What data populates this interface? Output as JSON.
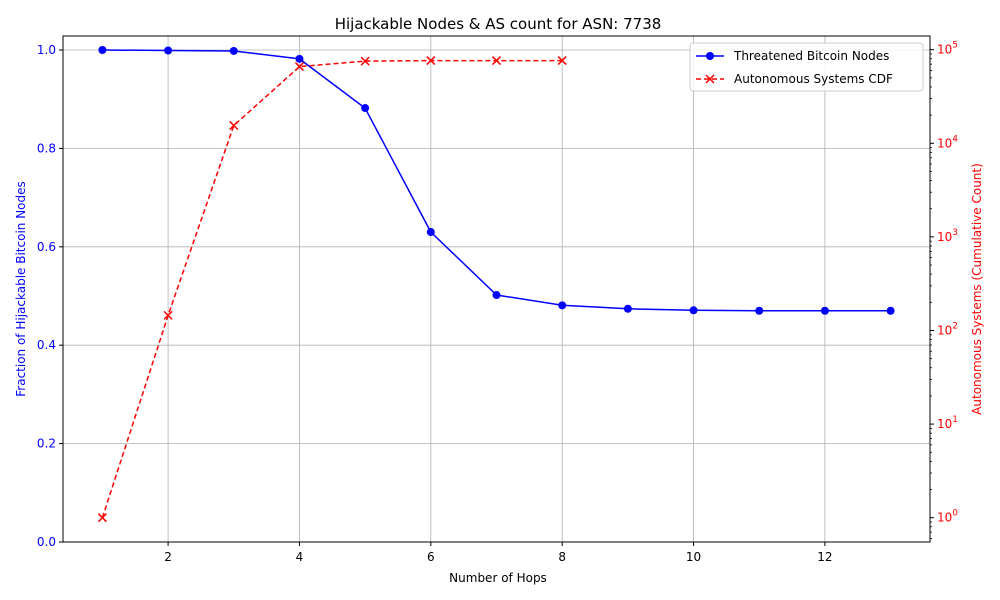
{
  "chart_data": {
    "type": "line",
    "title": "Hijackable Nodes & AS count for ASN: 7738",
    "xlabel": "Number of Hops",
    "ylabel_left": "Fraction of Hijackable Bitcoin Nodes",
    "ylabel_right": "Autonomous Systems (Cumulative Count)",
    "xlim": [
      0.4,
      13.6
    ],
    "ylim_left": [
      0.0,
      1.0
    ],
    "ylim_right": [
      0.55,
      140000
    ],
    "right_scale": "log",
    "grid": true,
    "legend_position": "top-right",
    "x_ticks": [
      {
        "value": 2,
        "label": "2"
      },
      {
        "value": 4,
        "label": "4"
      },
      {
        "value": 6,
        "label": "6"
      },
      {
        "value": 8,
        "label": "8"
      },
      {
        "value": 10,
        "label": "10"
      },
      {
        "value": 12,
        "label": "12"
      }
    ],
    "y_ticks_left": [
      {
        "value": 0.0,
        "label": "0.0"
      },
      {
        "value": 0.2,
        "label": "0.2"
      },
      {
        "value": 0.4,
        "label": "0.4"
      },
      {
        "value": 0.6,
        "label": "0.6"
      },
      {
        "value": 0.8,
        "label": "0.8"
      },
      {
        "value": 1.0,
        "label": "1.0"
      }
    ],
    "y_ticks_right": [
      {
        "value": 1,
        "base": "10",
        "exp": "0"
      },
      {
        "value": 10,
        "base": "10",
        "exp": "1"
      },
      {
        "value": 100,
        "base": "10",
        "exp": "2"
      },
      {
        "value": 1000,
        "base": "10",
        "exp": "3"
      },
      {
        "value": 10000,
        "base": "10",
        "exp": "4"
      },
      {
        "value": 100000,
        "base": "10",
        "exp": "5"
      }
    ],
    "series": [
      {
        "name": "Threatened Bitcoin Nodes",
        "axis": "left",
        "color": "#0000ff",
        "marker": "circle",
        "line_style": "solid",
        "x": [
          1,
          2,
          3,
          4,
          5,
          6,
          7,
          8,
          9,
          10,
          11,
          12,
          13
        ],
        "y": [
          1.0,
          0.999,
          0.998,
          0.982,
          0.882,
          0.63,
          0.502,
          0.481,
          0.474,
          0.471,
          0.47,
          0.47,
          0.47
        ]
      },
      {
        "name": "Autonomous Systems CDF",
        "axis": "right",
        "color": "#ff0000",
        "marker": "x",
        "line_style": "dashed",
        "x": [
          1,
          2,
          3,
          4,
          5,
          6,
          7,
          8
        ],
        "y": [
          1,
          145,
          15500,
          66000,
          75500,
          76500,
          76500,
          76500
        ]
      }
    ]
  }
}
